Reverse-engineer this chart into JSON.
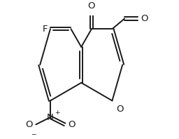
{
  "bg_color": "#ffffff",
  "line_color": "#1a1a1a",
  "line_width": 1.4,
  "font_size": 9.5,
  "fig_width": 2.56,
  "fig_height": 1.98,
  "dpi": 100,
  "xlim": [
    -3.0,
    3.8
  ],
  "ylim": [
    -3.2,
    2.4
  ]
}
